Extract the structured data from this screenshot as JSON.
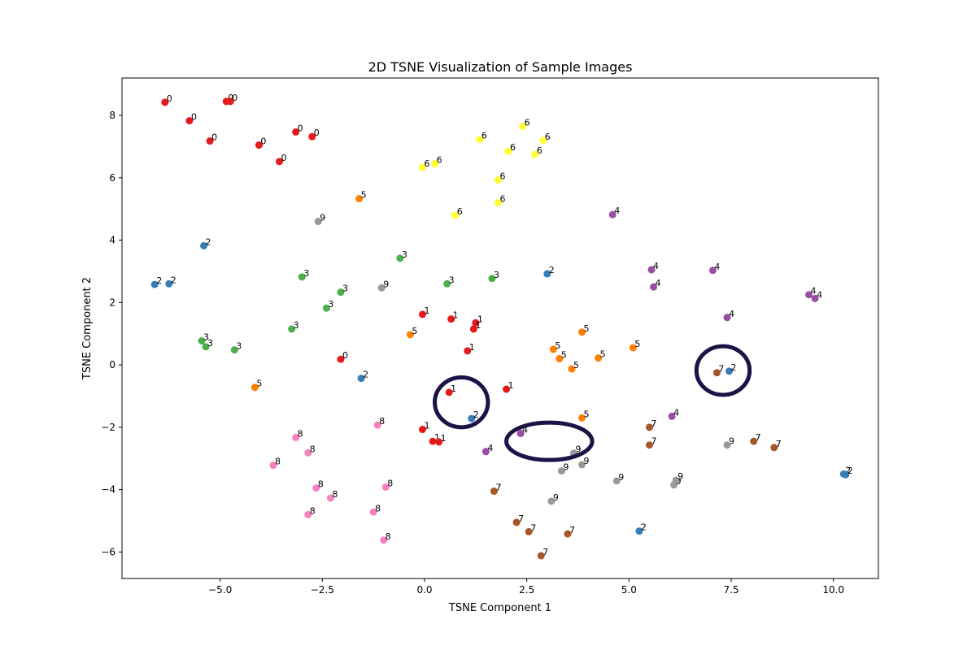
{
  "chart_data": {
    "type": "scatter",
    "title": "2D TSNE Visualization of Sample Images",
    "xlabel": "TSNE Component 1",
    "ylabel": "TSNE Component 2",
    "xlim": [
      -7.4,
      11.1
    ],
    "ylim": [
      -6.85,
      9.2
    ],
    "xticks": [
      -5.0,
      -2.5,
      0.0,
      2.5,
      5.0,
      7.5,
      10.0
    ],
    "xtick_labels": [
      "−5.0",
      "−2.5",
      "0.0",
      "2.5",
      "5.0",
      "7.5",
      "10.0"
    ],
    "yticks": [
      -6,
      -4,
      -2,
      0,
      2,
      4,
      6,
      8
    ],
    "ytick_labels": [
      "−6",
      "−4",
      "−2",
      "0",
      "2",
      "4",
      "6",
      "8"
    ],
    "grid": false,
    "legend": false,
    "class_colors": {
      "0": "#e41a1c",
      "1": "#e41a1c",
      "2": "#377eb8",
      "3": "#4daf4a",
      "4": "#984ea3",
      "5": "#ff7f00",
      "6": "#ffff33",
      "7": "#a65628",
      "8": "#f781bf",
      "9": "#999999"
    },
    "points": [
      {
        "x": -6.35,
        "y": 8.42,
        "label": "0"
      },
      {
        "x": -4.85,
        "y": 8.45,
        "label": "0"
      },
      {
        "x": -4.75,
        "y": 8.45,
        "label": "0"
      },
      {
        "x": -5.75,
        "y": 7.83,
        "label": "0"
      },
      {
        "x": -5.25,
        "y": 7.18,
        "label": "0"
      },
      {
        "x": -4.05,
        "y": 7.05,
        "label": "0"
      },
      {
        "x": -3.15,
        "y": 7.47,
        "label": "0"
      },
      {
        "x": -2.75,
        "y": 7.32,
        "label": "0"
      },
      {
        "x": -3.55,
        "y": 6.52,
        "label": "0"
      },
      {
        "x": -2.05,
        "y": 0.18,
        "label": "0"
      },
      {
        "x": -0.05,
        "y": 1.62,
        "label": "1"
      },
      {
        "x": 0.65,
        "y": 1.47,
        "label": "1"
      },
      {
        "x": 1.25,
        "y": 1.35,
        "label": "1"
      },
      {
        "x": 1.2,
        "y": 1.15,
        "label": "1"
      },
      {
        "x": 1.05,
        "y": 0.45,
        "label": "1"
      },
      {
        "x": 0.6,
        "y": -0.88,
        "label": "1"
      },
      {
        "x": 2.0,
        "y": -0.78,
        "label": "1"
      },
      {
        "x": -0.05,
        "y": -2.07,
        "label": "1"
      },
      {
        "x": 0.2,
        "y": -2.45,
        "label": "1"
      },
      {
        "x": 0.35,
        "y": -2.47,
        "label": "1"
      },
      {
        "x": -5.4,
        "y": 3.82,
        "label": "2"
      },
      {
        "x": -6.6,
        "y": 2.58,
        "label": "2"
      },
      {
        "x": -6.25,
        "y": 2.6,
        "label": "2"
      },
      {
        "x": 3.0,
        "y": 2.92,
        "label": "2"
      },
      {
        "x": -1.55,
        "y": -0.43,
        "label": "2"
      },
      {
        "x": 1.15,
        "y": -1.72,
        "label": "2"
      },
      {
        "x": 7.45,
        "y": -0.2,
        "label": "2"
      },
      {
        "x": 5.25,
        "y": -5.33,
        "label": "2"
      },
      {
        "x": 10.25,
        "y": -3.5,
        "label": "2"
      },
      {
        "x": 10.3,
        "y": -3.52,
        "label": "2"
      },
      {
        "x": -0.6,
        "y": 3.42,
        "label": "3"
      },
      {
        "x": -3.0,
        "y": 2.82,
        "label": "3"
      },
      {
        "x": -2.05,
        "y": 2.33,
        "label": "3"
      },
      {
        "x": -2.4,
        "y": 1.82,
        "label": "3"
      },
      {
        "x": -3.25,
        "y": 1.15,
        "label": "3"
      },
      {
        "x": 0.55,
        "y": 2.6,
        "label": "3"
      },
      {
        "x": 1.65,
        "y": 2.77,
        "label": "3"
      },
      {
        "x": -5.45,
        "y": 0.77,
        "label": "3"
      },
      {
        "x": -5.35,
        "y": 0.58,
        "label": "3"
      },
      {
        "x": -4.65,
        "y": 0.48,
        "label": "3"
      },
      {
        "x": 4.6,
        "y": 4.82,
        "label": "4"
      },
      {
        "x": 5.55,
        "y": 3.05,
        "label": "4"
      },
      {
        "x": 5.6,
        "y": 2.5,
        "label": "4"
      },
      {
        "x": 7.05,
        "y": 3.03,
        "label": "4"
      },
      {
        "x": 9.4,
        "y": 2.25,
        "label": "4"
      },
      {
        "x": 9.55,
        "y": 2.13,
        "label": "4"
      },
      {
        "x": 7.4,
        "y": 1.52,
        "label": "4"
      },
      {
        "x": 6.05,
        "y": -1.65,
        "label": "4"
      },
      {
        "x": 2.35,
        "y": -2.2,
        "label": "4"
      },
      {
        "x": 1.5,
        "y": -2.78,
        "label": "4"
      },
      {
        "x": -1.6,
        "y": 5.33,
        "label": "5"
      },
      {
        "x": -0.35,
        "y": 0.97,
        "label": "5"
      },
      {
        "x": -4.15,
        "y": -0.72,
        "label": "5"
      },
      {
        "x": 3.15,
        "y": 0.5,
        "label": "5"
      },
      {
        "x": 3.3,
        "y": 0.2,
        "label": "5"
      },
      {
        "x": 3.6,
        "y": -0.13,
        "label": "5"
      },
      {
        "x": 3.85,
        "y": 1.05,
        "label": "5"
      },
      {
        "x": 4.25,
        "y": 0.22,
        "label": "5"
      },
      {
        "x": 5.1,
        "y": 0.55,
        "label": "5"
      },
      {
        "x": 3.85,
        "y": -1.7,
        "label": "5"
      },
      {
        "x": 2.4,
        "y": 7.65,
        "label": "6"
      },
      {
        "x": 1.35,
        "y": 7.23,
        "label": "6"
      },
      {
        "x": 2.9,
        "y": 7.2,
        "label": "6"
      },
      {
        "x": 2.05,
        "y": 6.85,
        "label": "6"
      },
      {
        "x": 2.7,
        "y": 6.75,
        "label": "6"
      },
      {
        "x": 0.25,
        "y": 6.45,
        "label": "6"
      },
      {
        "x": -0.05,
        "y": 6.33,
        "label": "6"
      },
      {
        "x": 1.8,
        "y": 5.93,
        "label": "6"
      },
      {
        "x": 1.8,
        "y": 5.2,
        "label": "6"
      },
      {
        "x": 0.75,
        "y": 4.8,
        "label": "6"
      },
      {
        "x": 7.15,
        "y": -0.25,
        "label": "7"
      },
      {
        "x": 5.5,
        "y": -2.0,
        "label": "7"
      },
      {
        "x": 5.5,
        "y": -2.57,
        "label": "7"
      },
      {
        "x": 8.05,
        "y": -2.45,
        "label": "7"
      },
      {
        "x": 8.55,
        "y": -2.65,
        "label": "7"
      },
      {
        "x": 1.7,
        "y": -4.05,
        "label": "7"
      },
      {
        "x": 2.25,
        "y": -5.05,
        "label": "7"
      },
      {
        "x": 2.55,
        "y": -5.35,
        "label": "7"
      },
      {
        "x": 3.5,
        "y": -5.42,
        "label": "7"
      },
      {
        "x": 2.85,
        "y": -6.12,
        "label": "7"
      },
      {
        "x": -1.15,
        "y": -1.93,
        "label": "8"
      },
      {
        "x": -3.15,
        "y": -2.33,
        "label": "8"
      },
      {
        "x": -2.85,
        "y": -2.82,
        "label": "8"
      },
      {
        "x": -3.7,
        "y": -3.22,
        "label": "8"
      },
      {
        "x": -2.65,
        "y": -3.95,
        "label": "8"
      },
      {
        "x": -2.3,
        "y": -4.27,
        "label": "8"
      },
      {
        "x": -0.95,
        "y": -3.92,
        "label": "8"
      },
      {
        "x": -2.85,
        "y": -4.8,
        "label": "8"
      },
      {
        "x": -1.25,
        "y": -4.72,
        "label": "8"
      },
      {
        "x": -1.0,
        "y": -5.62,
        "label": "8"
      },
      {
        "x": -2.6,
        "y": 4.6,
        "label": "9"
      },
      {
        "x": -1.05,
        "y": 2.47,
        "label": "9"
      },
      {
        "x": 3.65,
        "y": -2.83,
        "label": "9"
      },
      {
        "x": 3.35,
        "y": -3.4,
        "label": "9"
      },
      {
        "x": 3.85,
        "y": -3.2,
        "label": "9"
      },
      {
        "x": 4.7,
        "y": -3.72,
        "label": "9"
      },
      {
        "x": 3.1,
        "y": -4.37,
        "label": "9"
      },
      {
        "x": 6.1,
        "y": -3.85,
        "label": "9"
      },
      {
        "x": 6.15,
        "y": -3.7,
        "label": "9"
      },
      {
        "x": 7.4,
        "y": -2.57,
        "label": "9"
      }
    ],
    "annotations": [
      {
        "type": "ellipse",
        "cx": 0.9,
        "cy": -1.2,
        "rx": 0.65,
        "ry": 0.8,
        "color": "#1b1246"
      },
      {
        "type": "ellipse",
        "cx": 3.05,
        "cy": -2.45,
        "rx": 1.05,
        "ry": 0.6,
        "color": "#1b1246"
      },
      {
        "type": "ellipse",
        "cx": 7.3,
        "cy": -0.18,
        "rx": 0.65,
        "ry": 0.78,
        "color": "#1b1246"
      }
    ]
  }
}
